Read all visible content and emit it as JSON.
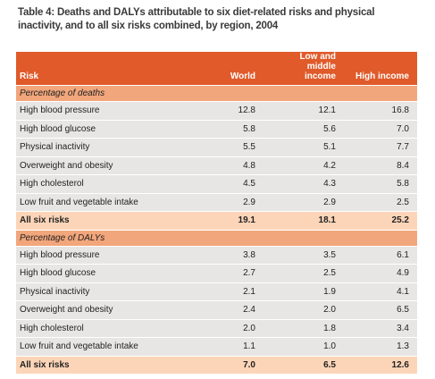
{
  "title": "Table 4: Deaths and DALYs attributable to six diet-related risks and physical inactivity, and to all six risks combined, by region, 2004",
  "table": {
    "header": [
      "Risk",
      "World",
      "Low and middle income",
      "High income"
    ],
    "sections": [
      {
        "label": "Percentage of deaths",
        "rows": [
          [
            "High blood pressure",
            "12.8",
            "12.1",
            "16.8"
          ],
          [
            "High blood glucose",
            "5.8",
            "5.6",
            "7.0"
          ],
          [
            "Physical inactivity",
            "5.5",
            "5.1",
            "7.7"
          ],
          [
            "Overweight and obesity",
            "4.8",
            "4.2",
            "8.4"
          ],
          [
            "High cholesterol",
            "4.5",
            "4.3",
            "5.8"
          ],
          [
            "Low fruit and vegetable intake",
            "2.9",
            "2.9",
            "2.5"
          ]
        ],
        "total": [
          "All six risks",
          "19.1",
          "18.1",
          "25.2"
        ]
      },
      {
        "label": "Percentage of DALYs",
        "rows": [
          [
            "High blood pressure",
            "3.8",
            "3.5",
            "6.1"
          ],
          [
            "High blood glucose",
            "2.7",
            "2.5",
            "4.9"
          ],
          [
            "Physical inactivity",
            "2.1",
            "1.9",
            "4.1"
          ],
          [
            "Overweight and obesity",
            "2.4",
            "2.0",
            "6.5"
          ],
          [
            "High cholesterol",
            "2.0",
            "1.8",
            "3.4"
          ],
          [
            "Low fruit and vegetable intake",
            "1.1",
            "1.0",
            "1.3"
          ]
        ],
        "total": [
          "All six risks",
          "7.0",
          "6.5",
          "12.6"
        ]
      }
    ]
  }
}
